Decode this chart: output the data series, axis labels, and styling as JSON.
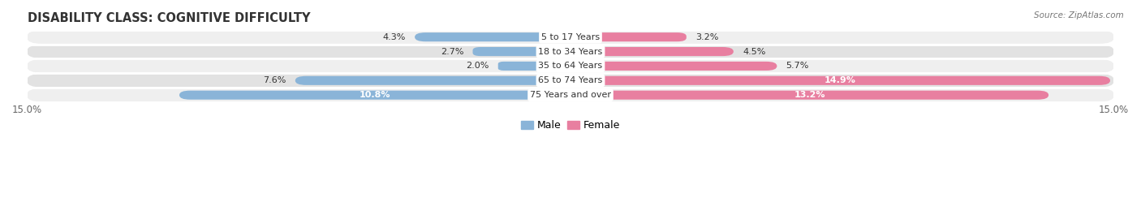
{
  "title": "DISABILITY CLASS: COGNITIVE DIFFICULTY",
  "source": "Source: ZipAtlas.com",
  "categories": [
    "5 to 17 Years",
    "18 to 34 Years",
    "35 to 64 Years",
    "65 to 74 Years",
    "75 Years and over"
  ],
  "male_values": [
    4.3,
    2.7,
    2.0,
    7.6,
    10.8
  ],
  "female_values": [
    3.2,
    4.5,
    5.7,
    14.9,
    13.2
  ],
  "xlim": 15.0,
  "male_color": "#8ab4d8",
  "female_color": "#e87fa0",
  "row_bg_light": "#efefef",
  "row_bg_dark": "#e2e2e2",
  "title_fontsize": 10.5,
  "label_fontsize": 8.0,
  "tick_fontsize": 8.5,
  "legend_fontsize": 9.0,
  "value_label_fontsize": 8.0
}
